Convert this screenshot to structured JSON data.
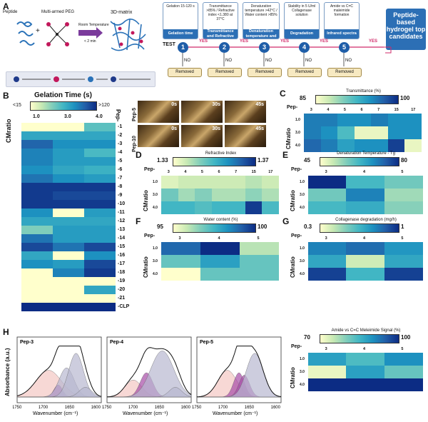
{
  "panels": {
    "A": "A",
    "B": "B",
    "C": "C",
    "D": "D",
    "E": "E",
    "F": "F",
    "G": "G",
    "H": "H"
  },
  "schematic": {
    "peptide_label": "Peptide",
    "peg_label": "Multi-armed PEG",
    "plus": "+",
    "arrow_label": "Room Temperature",
    "arrow_time": "< 2 min",
    "matrix_label": "3D-matrix",
    "test_label": "TEST",
    "yes": "YES",
    "no": "NO",
    "removed": "Removed",
    "steps": [
      {
        "num": "1",
        "text": "Gelation 15-120 s",
        "header": "Gelation time"
      },
      {
        "num": "2",
        "text": "Transmittance >85% / Refractive index <1.380 at 37°C",
        "header": "Transmittance and Refractive Index"
      },
      {
        "num": "3",
        "text": "Denaturation temperature >42°C / Water content >85%",
        "header": "Denaturation temperature and water content"
      },
      {
        "num": "4",
        "text": "Stability in 5 U/ml Collagenase solution",
        "header": "Degradation"
      },
      {
        "num": "5",
        "text": "Amide vs C=C maleimide formation",
        "header": "Infrared spectra"
      }
    ],
    "final": "Peptide-based hydrogel top candidates"
  },
  "photos": {
    "rows": [
      "Pep-5",
      "Pep-10"
    ],
    "times": [
      "0s",
      "30s",
      "45s"
    ]
  },
  "colors": {
    "cmap": [
      "#ffffcc",
      "#c7e9b4",
      "#7fcdbb",
      "#41b6c4",
      "#1d91c0",
      "#225ea8",
      "#0c2c84"
    ],
    "ir_pink": "#f4c7c3",
    "ir_purple": "#a64ca6",
    "ir_grey": "#b8b8d0"
  },
  "chart_data": [
    {
      "id": "B",
      "type": "heatmap",
      "title": "Gelation Time (s)",
      "colorbar": {
        "min_label": "<15",
        "max_label": ">120",
        "min": 15,
        "max": 120
      },
      "xlabel": "CMratio",
      "ylabel": "Pep-",
      "x": [
        "1.0",
        "3.0",
        "4.0"
      ],
      "y": [
        "1",
        "2",
        "3",
        "4",
        "5",
        "6",
        "7",
        "8",
        "9",
        "10",
        "11",
        "12",
        "13",
        "14",
        "15",
        "16",
        "17",
        "18",
        "19",
        "20",
        "21",
        "CLP"
      ],
      "values": [
        [
          15,
          15,
          60
        ],
        [
          75,
          75,
          75
        ],
        [
          100,
          85,
          85
        ],
        [
          90,
          80,
          65
        ],
        [
          90,
          80,
          80
        ],
        [
          85,
          75,
          70
        ],
        [
          95,
          85,
          80
        ],
        [
          115,
          115,
          115
        ],
        [
          115,
          110,
          110
        ],
        [
          115,
          115,
          115
        ],
        [
          85,
          15,
          80
        ],
        [
          75,
          75,
          75
        ],
        [
          50,
          80,
          80
        ],
        [
          95,
          80,
          80
        ],
        [
          110,
          95,
          110
        ],
        [
          75,
          15,
          85
        ],
        [
          85,
          80,
          110
        ],
        [
          15,
          90,
          115
        ],
        [
          15,
          15,
          15
        ],
        [
          15,
          15,
          75
        ],
        [
          15,
          15,
          15
        ],
        [
          120,
          120,
          120
        ]
      ]
    },
    {
      "id": "C",
      "type": "heatmap",
      "title": "Transmittance (%)",
      "colorbar": {
        "min": 85,
        "max": 100
      },
      "x_title": "Pep-",
      "x": [
        "3",
        "4",
        "5",
        "6",
        "7",
        "15",
        "17"
      ],
      "ylabel": "CMratio",
      "y": [
        "1.0",
        "3.0",
        "4.0"
      ],
      "values": [
        [
          96,
          96,
          95,
          95,
          96,
          95,
          95
        ],
        [
          96,
          95,
          92,
          86,
          86,
          95,
          95
        ],
        [
          97,
          96,
          94,
          95,
          95,
          99,
          86
        ]
      ]
    },
    {
      "id": "D",
      "type": "heatmap",
      "title": "Refractive Index",
      "colorbar": {
        "min": 1.33,
        "max": 1.37
      },
      "x_title": "Pep-",
      "x": [
        "3",
        "4",
        "5",
        "6",
        "7",
        "15",
        "17"
      ],
      "ylabel": "CMratio",
      "y": [
        "1.0",
        "3.0",
        "4.0"
      ],
      "values": [
        [
          1.334,
          1.336,
          1.336,
          1.336,
          1.336,
          1.338,
          1.336
        ],
        [
          1.345,
          1.34,
          1.343,
          1.339,
          1.339,
          1.342,
          1.339
        ],
        [
          1.35,
          1.35,
          1.348,
          1.35,
          1.35,
          1.368,
          1.349
        ]
      ]
    },
    {
      "id": "E",
      "type": "heatmap",
      "title": "Denaturation Temperature - Tg",
      "colorbar": {
        "min": 45,
        "max": 80
      },
      "x_title": "Pep-",
      "x": [
        "3",
        "4",
        "5"
      ],
      "ylabel": "CMratio",
      "y": [
        "1.0",
        "3.0",
        "4.0"
      ],
      "values": [
        [
          80,
          62,
          58
        ],
        [
          58,
          70,
          54
        ],
        [
          62,
          64,
          56
        ]
      ]
    },
    {
      "id": "F",
      "type": "heatmap",
      "title": "Water content (%)",
      "colorbar": {
        "min": 95,
        "max": 100
      },
      "x_title": "Pep-",
      "x": [
        "3",
        "4",
        "5"
      ],
      "ylabel": "CMratio",
      "y": [
        "1.0",
        "3.0",
        "4.0"
      ],
      "values": [
        [
          99,
          100,
          96
        ],
        [
          97,
          98,
          97
        ],
        [
          95,
          97,
          97
        ]
      ]
    },
    {
      "id": "G",
      "type": "heatmap",
      "title": "Collagenase degradation (mg/h)",
      "colorbar": {
        "min": 0.3,
        "max": 1.0
      },
      "x_title": "Pep-",
      "x": [
        "3",
        "4",
        "5"
      ],
      "ylabel": "CMratio",
      "y": [
        "1.0",
        "3.0",
        "4.0"
      ],
      "values": [
        [
          0.8,
          0.85,
          0.75
        ],
        [
          0.7,
          0.4,
          0.7
        ],
        [
          0.95,
          0.65,
          0.95
        ]
      ]
    },
    {
      "id": "G2",
      "type": "heatmap",
      "title": "Amide vs C=C Meleimide Signal (%)",
      "colorbar": {
        "min": 70,
        "max": 100
      },
      "x_title": "Pep-",
      "x": [
        "3",
        "4",
        "5"
      ],
      "ylabel": "CMratio",
      "y": [
        "1.0",
        "3.0",
        "4.0"
      ],
      "values": [
        [
          88,
          84,
          90
        ],
        [
          72,
          88,
          82
        ],
        [
          100,
          100,
          100
        ]
      ]
    },
    {
      "id": "H",
      "type": "line",
      "xlabel": "Wavenumber (cm⁻¹)",
      "ylabel": "Absorbance (a.u.)",
      "xlim": [
        1750,
        1590
      ],
      "xticks": [
        "1750",
        "1700",
        "1650",
        "1600"
      ],
      "subplots": [
        {
          "title": "Pep-3"
        },
        {
          "title": "Pep-4"
        },
        {
          "title": "Pep-5"
        }
      ]
    }
  ]
}
